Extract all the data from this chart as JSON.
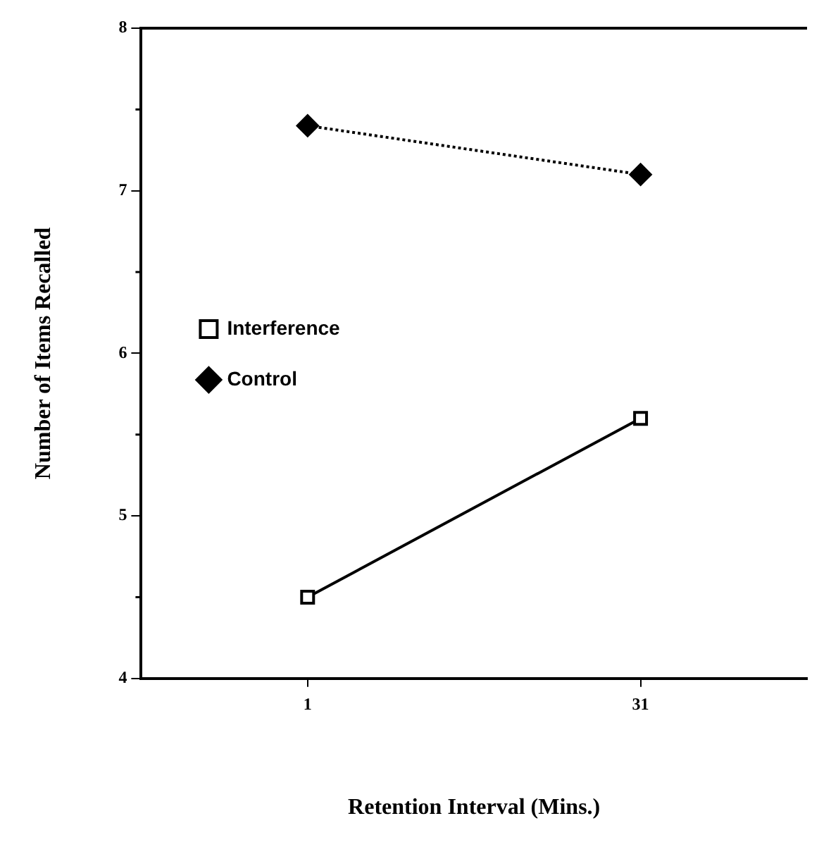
{
  "chart_data": {
    "type": "line",
    "xlabel": "Retention Interval (Mins.)",
    "ylabel": "Number of Items Recalled",
    "categories": [
      "1",
      "31"
    ],
    "ylim": [
      4,
      8
    ],
    "yticks": [
      4,
      5,
      6,
      7,
      8
    ],
    "grid": false,
    "legend": "left",
    "series": [
      {
        "name": "Interference",
        "color": "#000000",
        "values": [
          4.5,
          5.6
        ],
        "marker": "square",
        "line_style": "solid"
      },
      {
        "name": "Control",
        "color": "#000000",
        "values": [
          7.4,
          7.1
        ],
        "marker": "diamond",
        "line_style": "dotted"
      }
    ]
  }
}
